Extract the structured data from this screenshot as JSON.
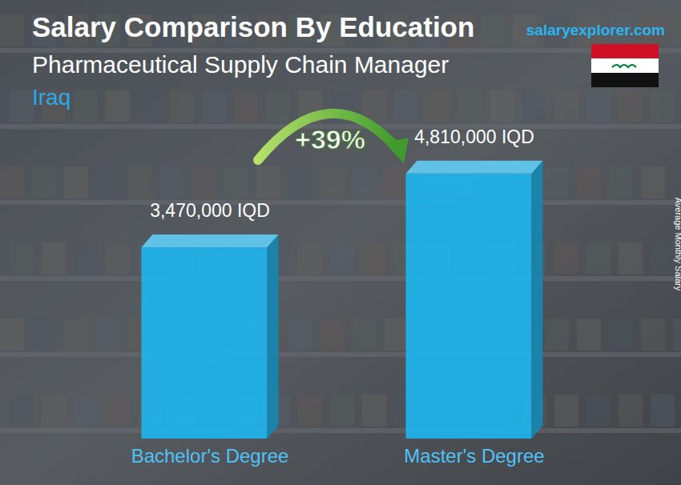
{
  "chart_data": {
    "type": "bar",
    "title": "Salary Comparison By Education",
    "subtitle": "Pharmaceutical Supply Chain Manager",
    "annotations": [
      "Iraq",
      "salaryexplorer.com",
      "+39%"
    ],
    "y_label": "Average Monthly Salary",
    "categories": [
      "Bachelor's Degree",
      "Master's Degree"
    ],
    "values": [
      3470000,
      4810000
    ],
    "value_labels": [
      "3,470,000 IQD",
      "4,810,000 IQD"
    ],
    "color": "#1eb4ec",
    "ylim": [
      0,
      5200000
    ],
    "data_labels": true,
    "tick_labels": false,
    "grid": false
  }
}
